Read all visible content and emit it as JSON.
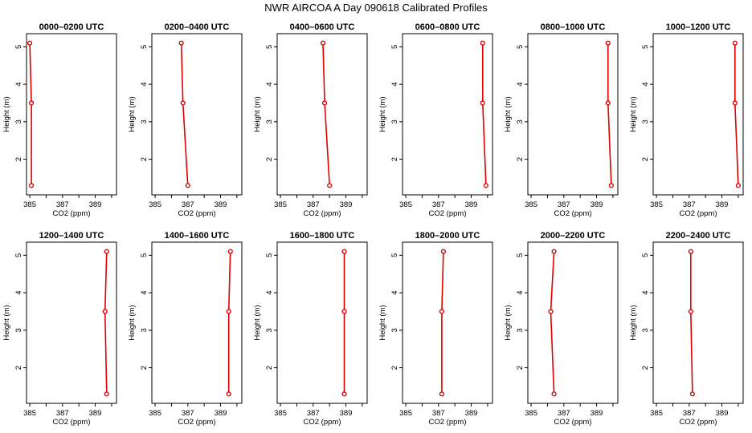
{
  "title": "NWR AIRCOA A   Day 090618   Calibrated Profiles",
  "chart_data": [
    {
      "type": "line",
      "title": "0000–0200 UTC",
      "xlabel": "CO2 (ppm)",
      "ylabel": "Height (m)",
      "xlim": [
        385,
        390
      ],
      "ylim": [
        1.3,
        5.1
      ],
      "xticks": [
        "385",
        "387",
        "389"
      ],
      "yticks": [
        "2",
        "3",
        "4",
        "5"
      ],
      "series": [
        {
          "x": [
            385.1,
            385.1,
            385.0
          ],
          "y": [
            1.3,
            3.5,
            5.1
          ]
        }
      ]
    },
    {
      "type": "line",
      "title": "0200–0400 UTC",
      "xlabel": "CO2 (ppm)",
      "ylabel": "Height (m)",
      "xlim": [
        385,
        390
      ],
      "ylim": [
        1.3,
        5.1
      ],
      "xticks": [
        "385",
        "387",
        "389"
      ],
      "yticks": [
        "2",
        "3",
        "4",
        "5"
      ],
      "series": [
        {
          "x": [
            387.0,
            386.7,
            386.6
          ],
          "y": [
            1.3,
            3.5,
            5.1
          ]
        }
      ]
    },
    {
      "type": "line",
      "title": "0400–0600 UTC",
      "xlabel": "CO2 (ppm)",
      "ylabel": "Height (m)",
      "xlim": [
        385,
        390
      ],
      "ylim": [
        1.3,
        5.1
      ],
      "xticks": [
        "385",
        "387",
        "389"
      ],
      "yticks": [
        "2",
        "3",
        "4",
        "5"
      ],
      "series": [
        {
          "x": [
            388.0,
            387.7,
            387.6
          ],
          "y": [
            1.3,
            3.5,
            5.1
          ]
        }
      ]
    },
    {
      "type": "line",
      "title": "0600–0800 UTC",
      "xlabel": "CO2 (ppm)",
      "ylabel": "Height (m)",
      "xlim": [
        385,
        390
      ],
      "ylim": [
        1.3,
        5.1
      ],
      "xticks": [
        "385",
        "387",
        "389"
      ],
      "yticks": [
        "2",
        "3",
        "4",
        "5"
      ],
      "series": [
        {
          "x": [
            389.9,
            389.7,
            389.7
          ],
          "y": [
            1.3,
            3.5,
            5.1
          ]
        }
      ]
    },
    {
      "type": "line",
      "title": "0800–1000 UTC",
      "xlabel": "CO2 (ppm)",
      "ylabel": "Height (m)",
      "xlim": [
        385,
        390
      ],
      "ylim": [
        1.3,
        5.1
      ],
      "xticks": [
        "385",
        "387",
        "389"
      ],
      "yticks": [
        "2",
        "3",
        "4",
        "5"
      ],
      "series": [
        {
          "x": [
            389.9,
            389.7,
            389.7
          ],
          "y": [
            1.3,
            3.5,
            5.1
          ]
        }
      ]
    },
    {
      "type": "line",
      "title": "1000–1200 UTC",
      "xlabel": "CO2 (ppm)",
      "ylabel": "Height (m)",
      "xlim": [
        385,
        390
      ],
      "ylim": [
        1.3,
        5.1
      ],
      "xticks": [
        "385",
        "387",
        "389"
      ],
      "yticks": [
        "2",
        "3",
        "4",
        "5"
      ],
      "series": [
        {
          "x": [
            390.0,
            389.8,
            389.8
          ],
          "y": [
            1.3,
            3.5,
            5.1
          ]
        }
      ]
    },
    {
      "type": "line",
      "title": "1200–1400 UTC",
      "xlabel": "CO2 (ppm)",
      "ylabel": "Height (m)",
      "xlim": [
        385,
        390
      ],
      "ylim": [
        1.3,
        5.1
      ],
      "xticks": [
        "385",
        "387",
        "389"
      ],
      "yticks": [
        "2",
        "3",
        "4",
        "5"
      ],
      "series": [
        {
          "x": [
            389.7,
            389.6,
            389.7
          ],
          "y": [
            1.3,
            3.5,
            5.1
          ]
        }
      ]
    },
    {
      "type": "line",
      "title": "1400–1600 UTC",
      "xlabel": "CO2 (ppm)",
      "ylabel": "Height (m)",
      "xlim": [
        385,
        390
      ],
      "ylim": [
        1.3,
        5.1
      ],
      "xticks": [
        "385",
        "387",
        "389"
      ],
      "yticks": [
        "2",
        "3",
        "4",
        "5"
      ],
      "series": [
        {
          "x": [
            389.5,
            389.5,
            389.6
          ],
          "y": [
            1.3,
            3.5,
            5.1
          ]
        }
      ]
    },
    {
      "type": "line",
      "title": "1600–1800 UTC",
      "xlabel": "CO2 (ppm)",
      "ylabel": "Height (m)",
      "xlim": [
        385,
        390
      ],
      "ylim": [
        1.3,
        5.1
      ],
      "xticks": [
        "385",
        "387",
        "389"
      ],
      "yticks": [
        "2",
        "3",
        "4",
        "5"
      ],
      "series": [
        {
          "x": [
            388.9,
            388.9,
            388.9
          ],
          "y": [
            1.3,
            3.5,
            5.1
          ]
        }
      ]
    },
    {
      "type": "line",
      "title": "1800–2000 UTC",
      "xlabel": "CO2 (ppm)",
      "ylabel": "Height (m)",
      "xlim": [
        385,
        390
      ],
      "ylim": [
        1.3,
        5.1
      ],
      "xticks": [
        "385",
        "387",
        "389"
      ],
      "yticks": [
        "2",
        "3",
        "4",
        "5"
      ],
      "series": [
        {
          "x": [
            387.2,
            387.2,
            387.3
          ],
          "y": [
            1.3,
            3.5,
            5.1
          ]
        }
      ]
    },
    {
      "type": "line",
      "title": "2000–2200 UTC",
      "xlabel": "CO2 (ppm)",
      "ylabel": "Height (m)",
      "xlim": [
        385,
        390
      ],
      "ylim": [
        1.3,
        5.1
      ],
      "xticks": [
        "385",
        "387",
        "389"
      ],
      "yticks": [
        "2",
        "3",
        "4",
        "5"
      ],
      "series": [
        {
          "x": [
            386.4,
            386.2,
            386.4
          ],
          "y": [
            1.3,
            3.5,
            5.1
          ]
        }
      ]
    },
    {
      "type": "line",
      "title": "2200–2400 UTC",
      "xlabel": "CO2 (ppm)",
      "ylabel": "Height (m)",
      "xlim": [
        385,
        390
      ],
      "ylim": [
        1.3,
        5.1
      ],
      "xticks": [
        "385",
        "387",
        "389"
      ],
      "yticks": [
        "2",
        "3",
        "4",
        "5"
      ],
      "series": [
        {
          "x": [
            387.2,
            387.1,
            387.1
          ],
          "y": [
            1.3,
            3.5,
            5.1
          ]
        }
      ]
    }
  ]
}
